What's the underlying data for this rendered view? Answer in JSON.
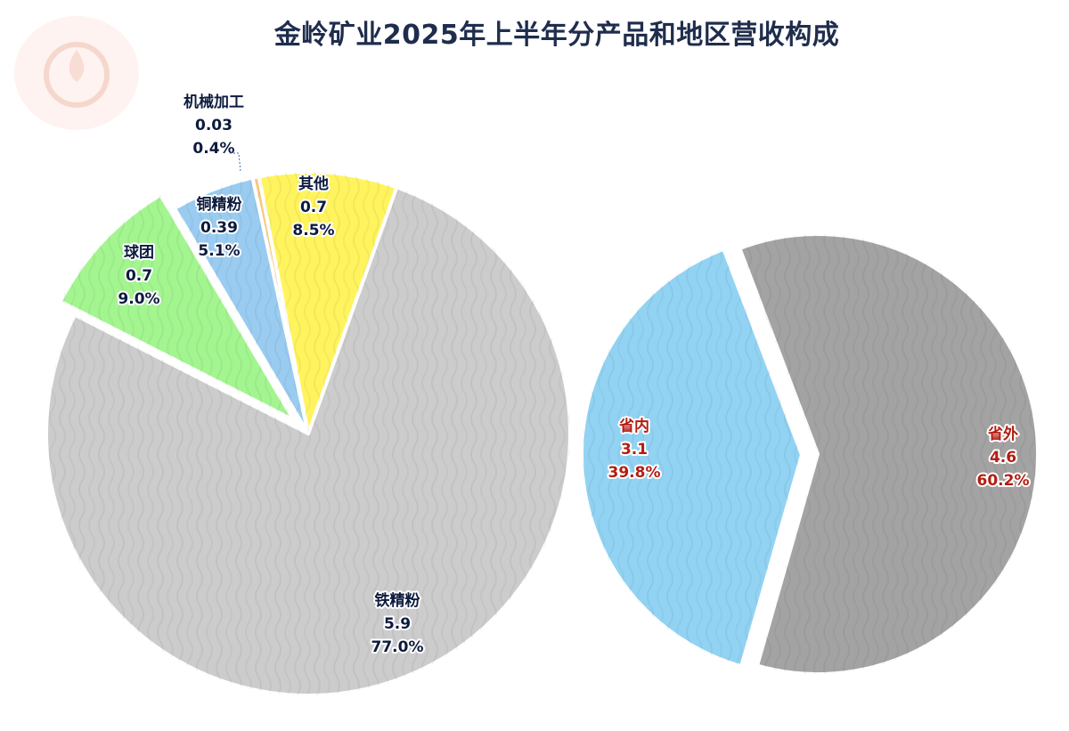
{
  "title": "金岭矿业2025年上半年分产品和地区营收构成",
  "colors": {
    "title": "#1f2d4d",
    "label_dark": "#0d1b3e",
    "label_red": "#b31d12"
  },
  "chart_data": [
    {
      "type": "pie",
      "title": "",
      "slices": [
        {
          "name": "铁精粉",
          "value": "5.9",
          "percent": "77.0%",
          "color": "#cccccc"
        },
        {
          "name": "球团",
          "value": "0.7",
          "percent": "9.0%",
          "color": "#a3f590"
        },
        {
          "name": "铜精粉",
          "value": "0.39",
          "percent": "5.1%",
          "color": "#99ccf0"
        },
        {
          "name": "机械加工",
          "value": "0.03",
          "percent": "0.4%",
          "color": "#f7c97d"
        },
        {
          "name": "其他",
          "value": "0.7",
          "percent": "8.5%",
          "color": "#fff45e"
        }
      ]
    },
    {
      "type": "pie",
      "title": "",
      "slices": [
        {
          "name": "省内",
          "value": "3.1",
          "percent": "39.8%",
          "color": "#92d3f3"
        },
        {
          "name": "省外",
          "value": "4.6",
          "percent": "60.2%",
          "color": "#a3a3a3"
        }
      ]
    }
  ]
}
